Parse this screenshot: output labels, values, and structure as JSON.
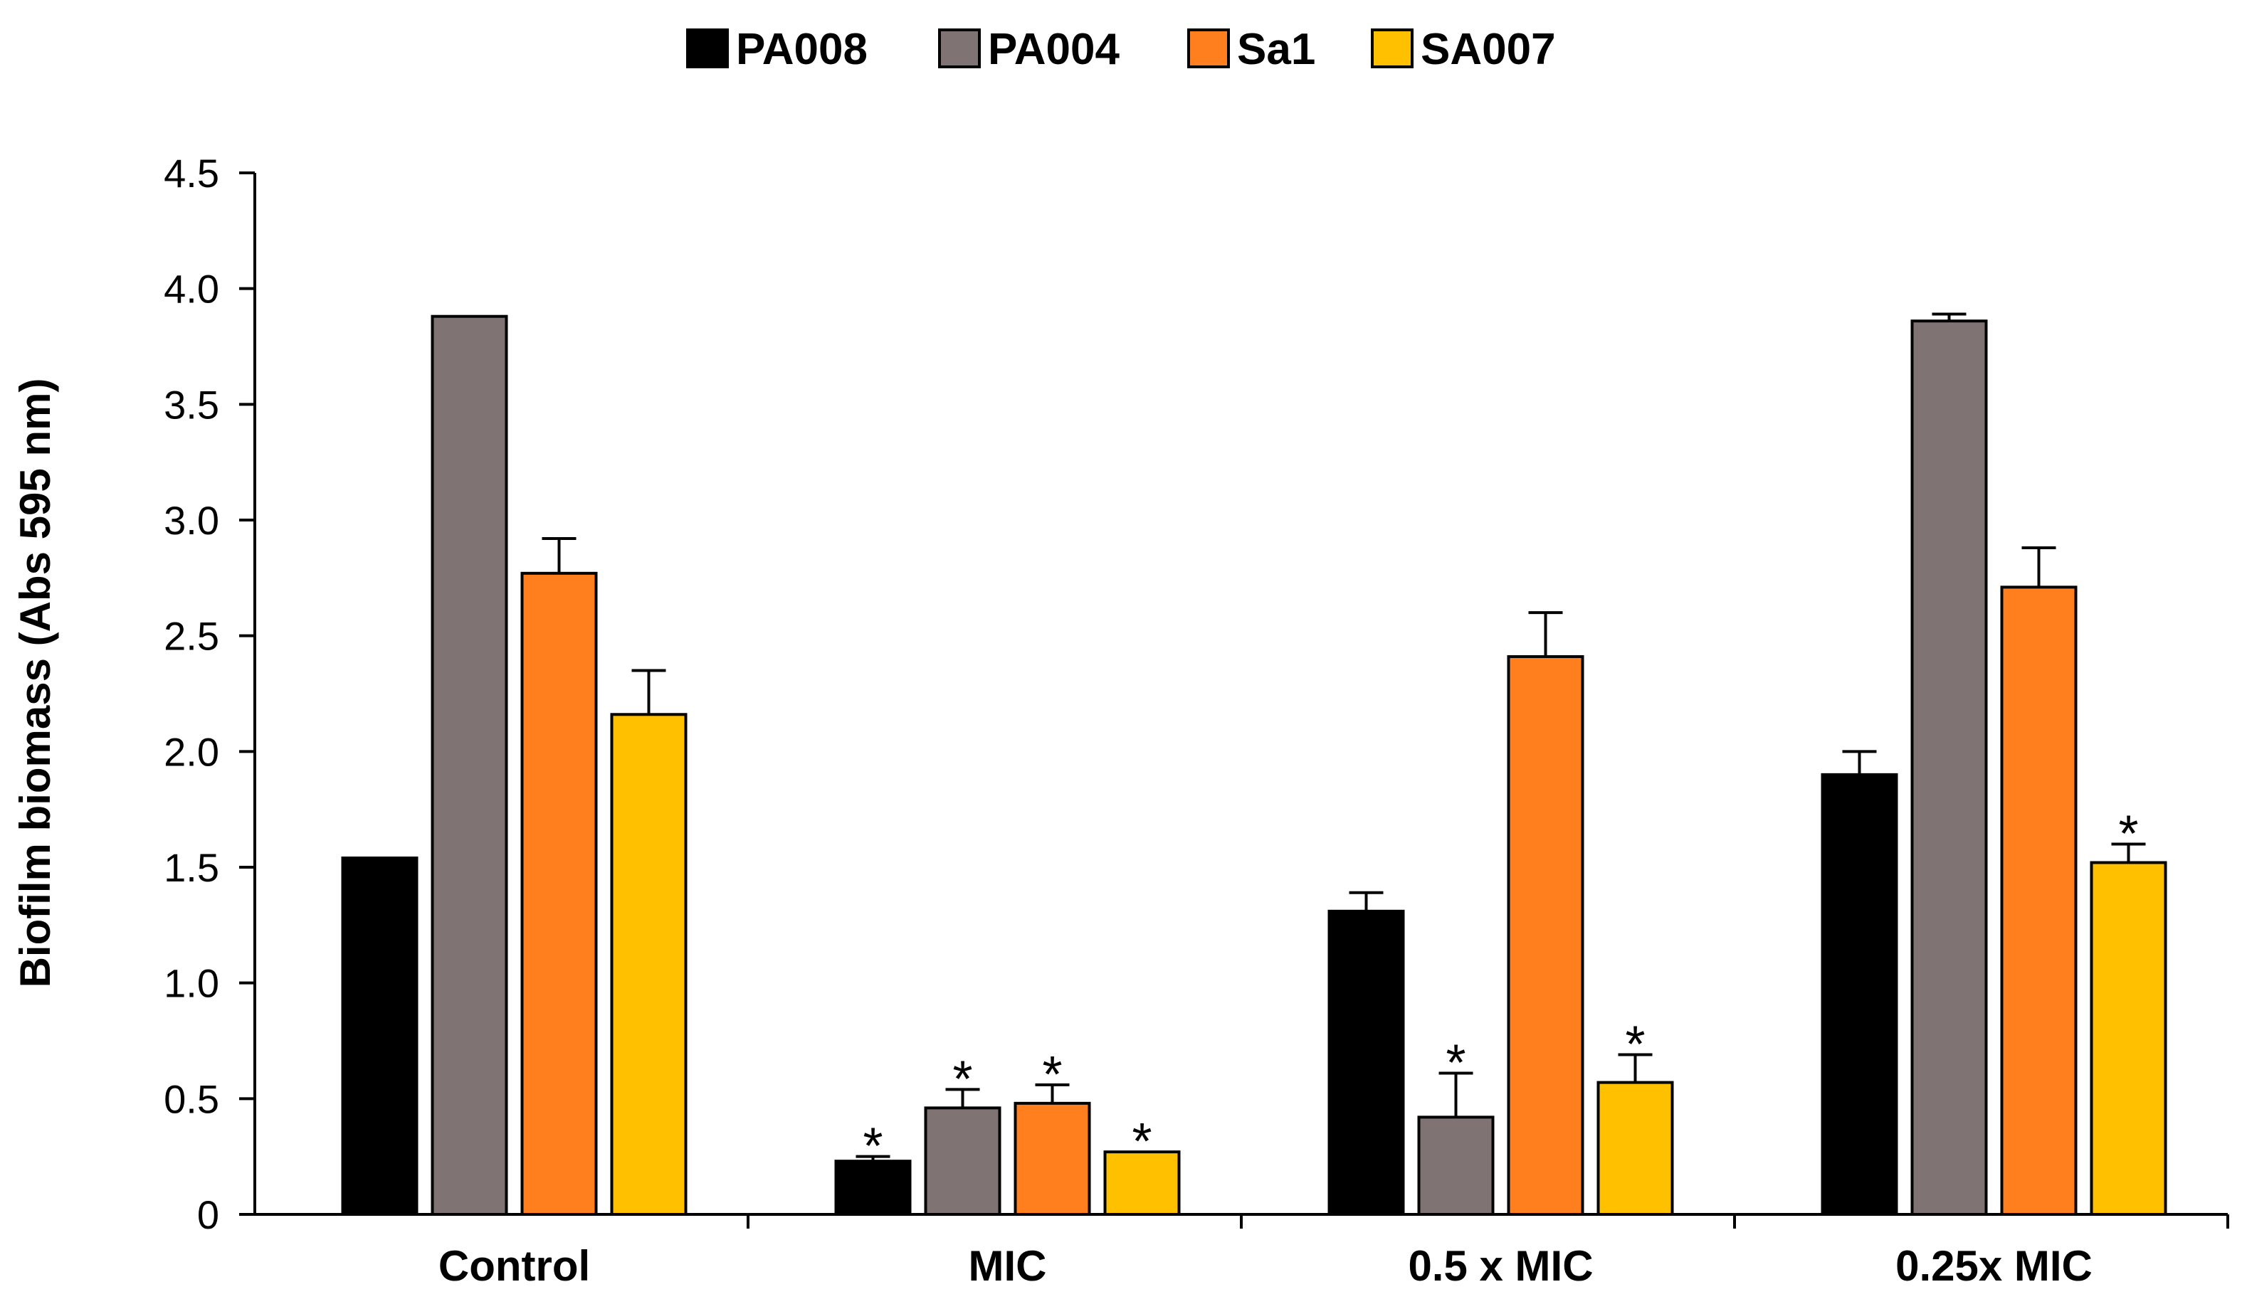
{
  "chart_data": {
    "type": "bar",
    "title": "",
    "xlabel": "",
    "ylabel": "Biofilm biomass (Abs 595 nm)",
    "ylim": [
      0,
      4.5
    ],
    "yticks": [
      "0",
      "0.5",
      "1.0",
      "1.5",
      "2.0",
      "2.5",
      "3.0",
      "3.5",
      "4.0",
      "4.5"
    ],
    "ytick_values": [
      0,
      0.5,
      1.0,
      1.5,
      2.0,
      2.5,
      3.0,
      3.5,
      4.0,
      4.5
    ],
    "categories": [
      "Control",
      "MIC",
      "0.5 x MIC",
      "0.25x MIC"
    ],
    "legend_position": "top-center",
    "series": [
      {
        "name": "PA008",
        "color": "#000000",
        "values": [
          1.54,
          0.23,
          1.31,
          1.9
        ],
        "errors": [
          0.0,
          0.02,
          0.08,
          0.1
        ],
        "significance": [
          "",
          "*",
          "",
          ""
        ]
      },
      {
        "name": "PA004",
        "color": "#7f7473",
        "values": [
          3.88,
          0.46,
          0.42,
          3.86
        ],
        "errors": [
          0.0,
          0.08,
          0.19,
          0.03
        ],
        "significance": [
          "",
          "*",
          "*",
          ""
        ]
      },
      {
        "name": "Sa1",
        "color": "#ff7f1e",
        "values": [
          2.77,
          0.48,
          2.41,
          2.71
        ],
        "errors": [
          0.15,
          0.08,
          0.19,
          0.17
        ],
        "significance": [
          "",
          "*",
          "",
          ""
        ]
      },
      {
        "name": "SA007",
        "color": "#ffc000",
        "values": [
          2.16,
          0.27,
          0.57,
          1.52
        ],
        "errors": [
          0.19,
          0.0,
          0.12,
          0.08
        ],
        "significance": [
          "",
          "*",
          "*",
          "*"
        ]
      }
    ]
  }
}
